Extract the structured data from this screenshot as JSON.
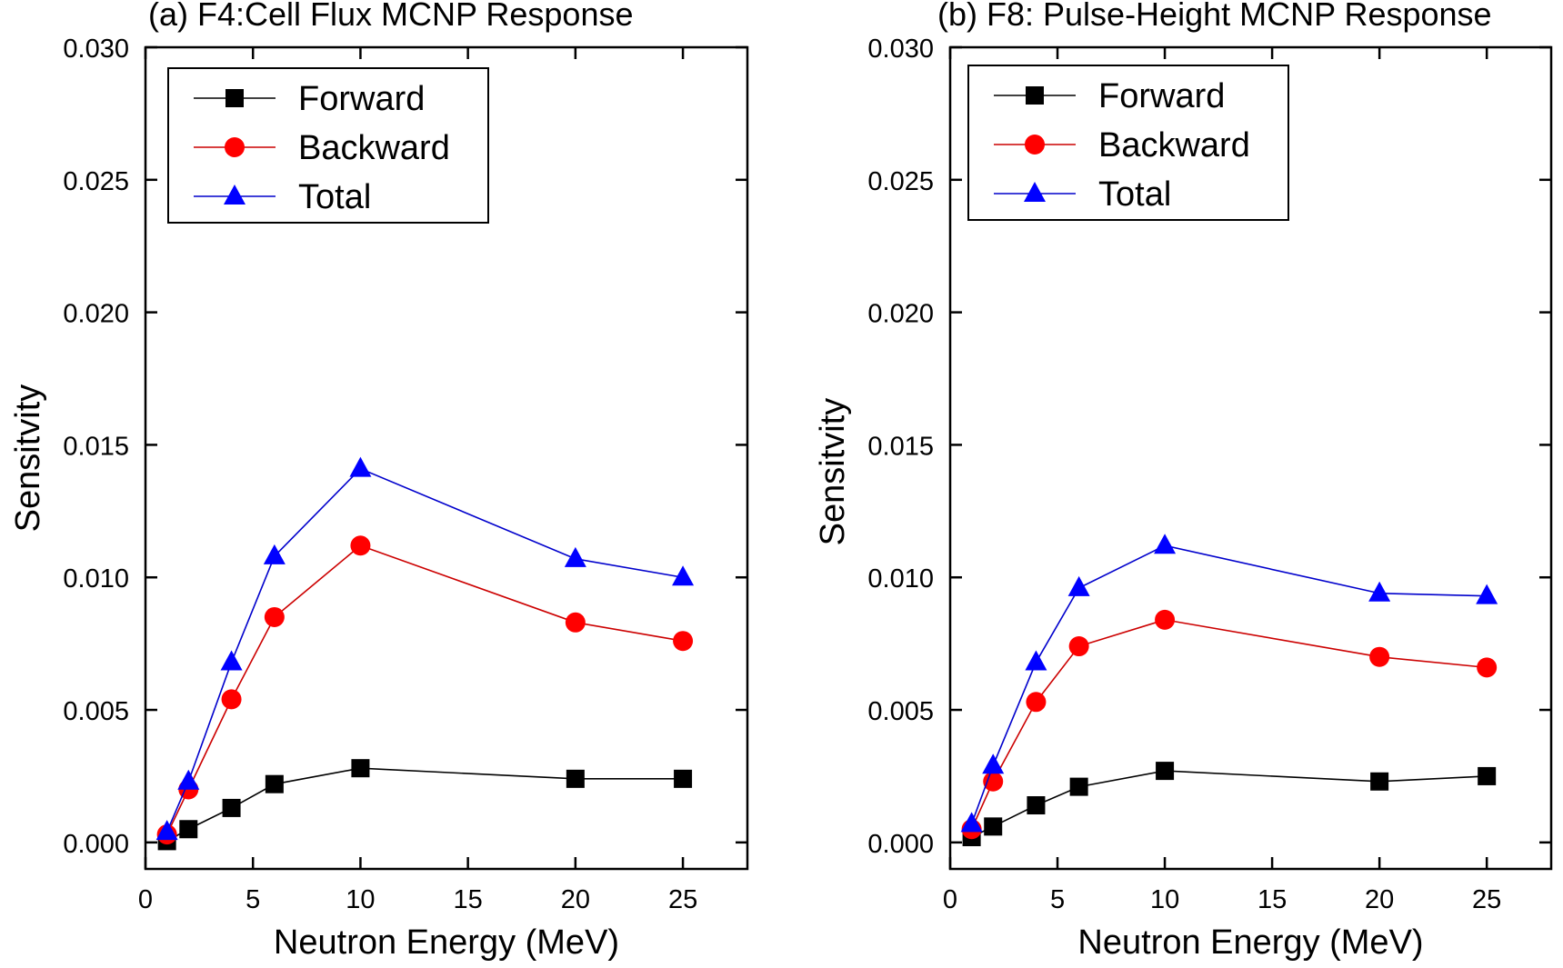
{
  "colors": {
    "Forward": "#000000",
    "Backward": "#ff0000",
    "Total": "#0000ff",
    "Forward_line": "#000000",
    "Backward_line": "#cc0000",
    "Total_line": "#0000cc"
  },
  "chart_data": [
    {
      "type": "line",
      "title": "(a) F4:Cell Flux MCNP Response",
      "xlabel": "Neutron Energy (MeV)",
      "ylabel": "Sensitvity",
      "xlim": [
        0,
        28
      ],
      "ylim": [
        -0.001,
        0.03
      ],
      "xticks": [
        0,
        5,
        10,
        15,
        20,
        25
      ],
      "xtick_labels": [
        "0",
        "5",
        "10",
        "15",
        "20",
        "25"
      ],
      "yticks": [
        0.0,
        0.005,
        0.01,
        0.015,
        0.02,
        0.025,
        0.03
      ],
      "ytick_labels": [
        "0.000",
        "0.005",
        "0.010",
        "0.015",
        "0.020",
        "0.025",
        "0.030"
      ],
      "grid": false,
      "legend_position": "top-left",
      "x": [
        1,
        2,
        4,
        6,
        10,
        20,
        25
      ],
      "series": [
        {
          "name": "Forward",
          "marker": "square",
          "values": [
            5e-05,
            0.0005,
            0.0013,
            0.0022,
            0.0028,
            0.0024,
            0.0024
          ]
        },
        {
          "name": "Backward",
          "marker": "circle",
          "values": [
            0.0003,
            0.002,
            0.0054,
            0.0085,
            0.0112,
            0.0083,
            0.0076
          ]
        },
        {
          "name": "Total",
          "marker": "triangle",
          "values": [
            0.0004,
            0.0023,
            0.0068,
            0.0108,
            0.0141,
            0.0107,
            0.01
          ]
        }
      ]
    },
    {
      "type": "line",
      "title": "(b) F8: Pulse-Height MCNP Response",
      "xlabel": "Neutron Energy (MeV)",
      "ylabel": "Sensitvity",
      "xlim": [
        0,
        28
      ],
      "ylim": [
        -0.001,
        0.03
      ],
      "xticks": [
        0,
        5,
        10,
        15,
        20,
        25
      ],
      "xtick_labels": [
        "0",
        "5",
        "10",
        "15",
        "20",
        "25"
      ],
      "yticks": [
        0.0,
        0.005,
        0.01,
        0.015,
        0.02,
        0.025,
        0.03
      ],
      "ytick_labels": [
        "0.000",
        "0.005",
        "0.010",
        "0.015",
        "0.020",
        "0.025",
        "0.030"
      ],
      "grid": false,
      "legend_position": "top-left",
      "x": [
        1,
        2,
        4,
        6,
        10,
        20,
        25
      ],
      "series": [
        {
          "name": "Forward",
          "marker": "square",
          "values": [
            0.0002,
            0.0006,
            0.0014,
            0.0021,
            0.0027,
            0.0023,
            0.0025
          ]
        },
        {
          "name": "Backward",
          "marker": "circle",
          "values": [
            0.0005,
            0.0023,
            0.0053,
            0.0074,
            0.0084,
            0.007,
            0.0066
          ]
        },
        {
          "name": "Total",
          "marker": "triangle",
          "values": [
            0.0007,
            0.0029,
            0.0068,
            0.0096,
            0.0112,
            0.0094,
            0.0093
          ]
        }
      ]
    }
  ]
}
